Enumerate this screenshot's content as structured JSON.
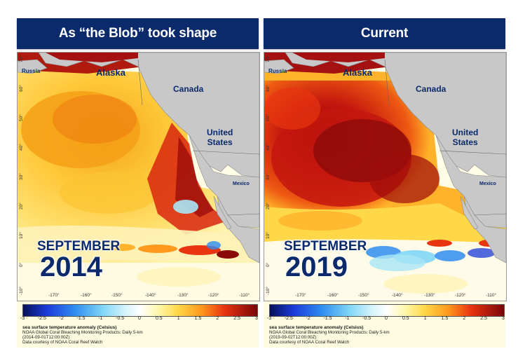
{
  "panels": [
    {
      "title": "As “the Blob” took shape",
      "month": "SEPTEMBER",
      "year": "2014",
      "timestamp": "(2014-09-01T12:00:00Z)"
    },
    {
      "title": "Current",
      "month": "SEPTEMBER",
      "year": "2019",
      "timestamp": "(2019-09-02T12:00:00Z)"
    }
  ],
  "regions": {
    "russia": "Russia",
    "alaska": "Alaska",
    "canada": "Canada",
    "us_line1": "United",
    "us_line2": "States",
    "mexico": "Mexico"
  },
  "lat_ticks": [
    "70°",
    "60°",
    "50°",
    "40°",
    "30°",
    "20°",
    "10°",
    "0°",
    "-10°"
  ],
  "lon_ticks": [
    "-170°",
    "-160°",
    "-150°",
    "-140°",
    "-130°",
    "-120°",
    "-110°"
  ],
  "colorbar_ticks": [
    "-3",
    "-2.5",
    "-2",
    "-1.5",
    "-1",
    "-0.5",
    "0",
    "0.5",
    "1",
    "1.5",
    "2",
    "2.5",
    "3"
  ],
  "legend": {
    "variable": "sea surface temperature anomaly (Celsius)",
    "product": "NOAA Global Coral Bleaching Monitoring Products: Daily 5-km",
    "courtesy": "Data courtesy of NOAA Coral Reef Watch"
  },
  "colors": {
    "header_bg": "#0b2a6b",
    "land": "#c8c8c8",
    "legend_bg": "#fdfbe0"
  }
}
